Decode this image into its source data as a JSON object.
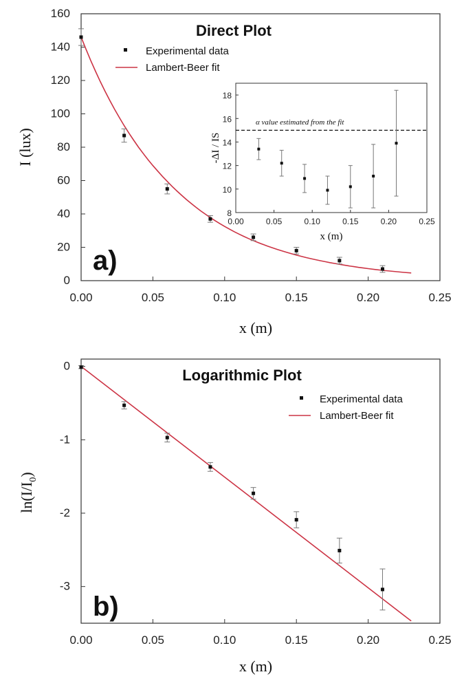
{
  "chart_data": [
    {
      "type": "scatter",
      "title": "Direct Plot",
      "panel_label": "a)",
      "xlabel": "x (m)",
      "ylabel": "I (lux)",
      "xlim": [
        0.0,
        0.25
      ],
      "ylim": [
        0,
        160
      ],
      "x_ticks": [
        "0.00",
        "0.05",
        "0.10",
        "0.15",
        "0.20",
        "0.25"
      ],
      "y_ticks": [
        "0",
        "20",
        "40",
        "60",
        "80",
        "100",
        "120",
        "140",
        "160"
      ],
      "legend": {
        "placement": "top-right",
        "entries": [
          "Experimental data",
          "Lambert-Beer fit"
        ]
      },
      "series": [
        {
          "name": "Experimental data",
          "kind": "points-with-error-bars",
          "color": "#111111",
          "x": [
            0.0,
            0.03,
            0.06,
            0.09,
            0.12,
            0.15,
            0.18,
            0.21
          ],
          "y": [
            146,
            87,
            55,
            37,
            26,
            18,
            12,
            7
          ],
          "err": [
            5,
            4,
            3,
            2,
            2,
            2,
            2,
            2
          ]
        },
        {
          "name": "Lambert-Beer fit",
          "kind": "curve",
          "color": "#cc3344",
          "x": [
            0.0,
            0.02,
            0.04,
            0.06,
            0.08,
            0.1,
            0.12,
            0.14,
            0.16,
            0.18,
            0.2,
            0.23
          ],
          "y": [
            146,
            108,
            80,
            59.5,
            44,
            32.5,
            24,
            17.8,
            13.2,
            9.8,
            7.2,
            4.6
          ]
        }
      ],
      "inset": {
        "xlabel": "x (m)",
        "ylabel": "-ΔI / IS",
        "xlim": [
          0.0,
          0.25
        ],
        "ylim": [
          8,
          19
        ],
        "x_ticks": [
          "0.00",
          "0.05",
          "0.10",
          "0.15",
          "0.20",
          "0.25"
        ],
        "y_ticks": [
          "8",
          "10",
          "12",
          "14",
          "16",
          "18"
        ],
        "annotation": "α value estimated from the fit",
        "reference_line": 15,
        "points": {
          "x": [
            0.03,
            0.06,
            0.09,
            0.12,
            0.15,
            0.18,
            0.21
          ],
          "y": [
            13.4,
            12.2,
            10.9,
            9.9,
            10.2,
            11.1,
            13.9
          ],
          "err": [
            0.9,
            1.1,
            1.2,
            1.2,
            1.8,
            2.7,
            4.5
          ]
        }
      }
    },
    {
      "type": "scatter",
      "title": "Logarithmic Plot",
      "panel_label": "b)",
      "xlabel": "x (m)",
      "ylabel_main": "ln(I/I",
      "ylabel_sub": "0",
      "ylabel_tail": ")",
      "xlim": [
        0.0,
        0.25
      ],
      "ylim": [
        -3.5,
        0.1
      ],
      "x_ticks": [
        "0.00",
        "0.05",
        "0.10",
        "0.15",
        "0.20",
        "0.25"
      ],
      "y_ticks": [
        "0",
        "-1",
        "-2",
        "-3"
      ],
      "legend": {
        "placement": "top-right",
        "entries": [
          "Experimental data",
          "Lambert-Beer fit"
        ]
      },
      "series": [
        {
          "name": "Experimental data",
          "kind": "points-with-error-bars",
          "color": "#111111",
          "x": [
            0.0,
            0.03,
            0.06,
            0.09,
            0.12,
            0.15,
            0.18,
            0.21
          ],
          "y": [
            -0.01,
            -0.53,
            -0.97,
            -1.37,
            -1.73,
            -2.09,
            -2.51,
            -3.04
          ],
          "err": [
            0.02,
            0.05,
            0.06,
            0.06,
            0.08,
            0.11,
            0.17,
            0.28
          ]
        },
        {
          "name": "Lambert-Beer fit",
          "kind": "line",
          "color": "#cc3344",
          "x": [
            0.0,
            0.23
          ],
          "y": [
            0.0,
            -3.47
          ]
        }
      ]
    }
  ]
}
